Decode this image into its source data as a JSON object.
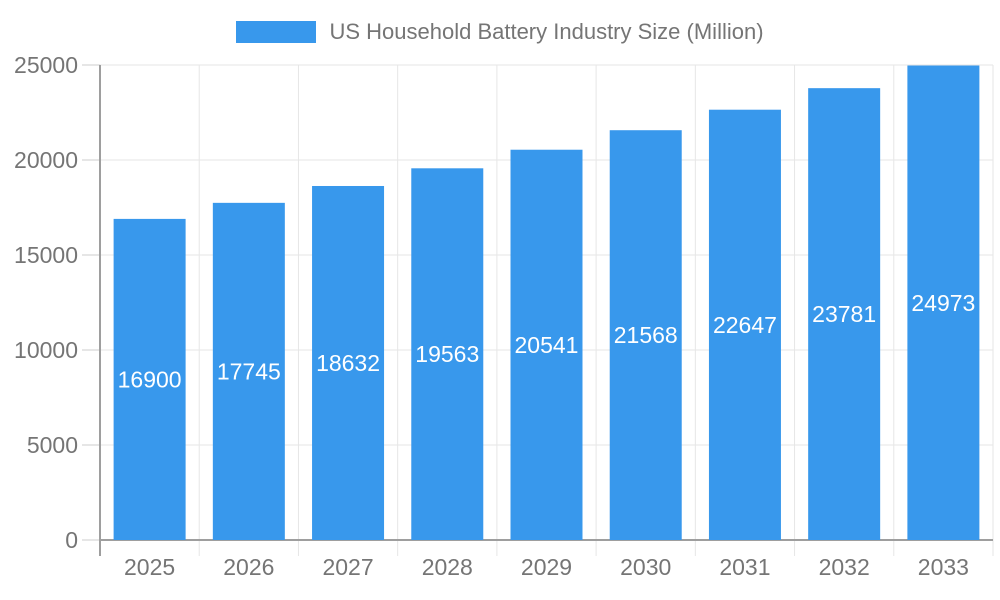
{
  "chart_data": {
    "type": "bar",
    "title": "US Household Battery Industry Size (Million)",
    "legend": {
      "position": "top",
      "label": "US Household Battery Industry Size (Million)"
    },
    "categories": [
      "2025",
      "2026",
      "2027",
      "2028",
      "2029",
      "2030",
      "2031",
      "2032",
      "2033"
    ],
    "series": [
      {
        "name": "US Household Battery Industry Size (Million)",
        "values": [
          16900,
          17745,
          18632,
          19563,
          20541,
          21568,
          22647,
          23781,
          24973
        ]
      }
    ],
    "bar_value_labels": [
      "16900",
      "17745",
      "18632",
      "19563",
      "20541",
      "21568",
      "22647",
      "23781",
      "24973"
    ],
    "xlabel": "",
    "ylabel": "",
    "ylim": [
      0,
      25000
    ],
    "yticks": [
      0,
      5000,
      10000,
      15000,
      20000,
      25000
    ],
    "ytick_labels": [
      "0",
      "5000",
      "10000",
      "15000",
      "20000",
      "25000"
    ],
    "grid": true,
    "colors": {
      "bar": "#3898EC",
      "bar_label_text": "#ffffff",
      "axis_text": "#757575",
      "grid_line": "#e6e6e6",
      "axis_line": "#9e9e9e",
      "tick_line": "#cccccc",
      "background": "#ffffff"
    }
  }
}
